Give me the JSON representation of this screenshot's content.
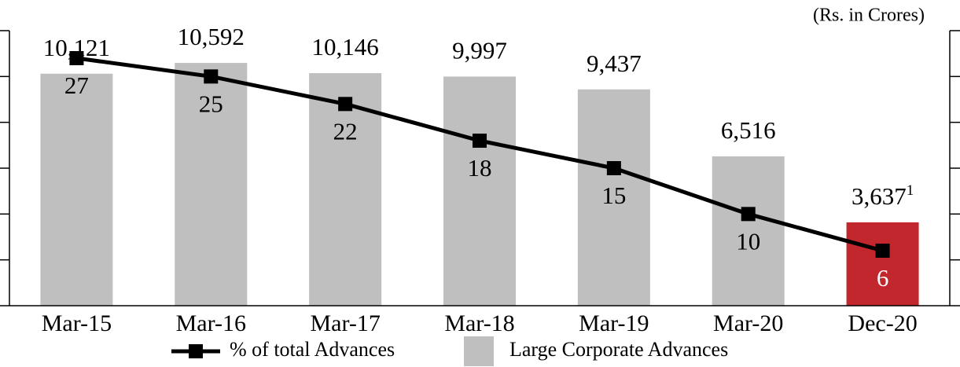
{
  "chart_data": {
    "type": "bar_line",
    "unit_label": "(Rs. in Crores)",
    "categories": [
      "Mar-15",
      "Mar-16",
      "Mar-17",
      "Mar-18",
      "Mar-19",
      "Mar-20",
      "Dec-20"
    ],
    "series": [
      {
        "name": "% of total Advances",
        "type": "line",
        "axis": "y2",
        "color": "#000000",
        "values": [
          27,
          25,
          22,
          18,
          15,
          10,
          6
        ]
      },
      {
        "name": "Large Corporate Advances",
        "type": "bar",
        "color": "#bfbfbf",
        "colors": [
          "#bfbfbf",
          "#bfbfbf",
          "#bfbfbf",
          "#bfbfbf",
          "#bfbfbf",
          "#bfbfbf",
          "#c1272d"
        ],
        "values": [
          10121,
          10592,
          10146,
          9997,
          9437,
          6516,
          3637
        ],
        "value_labels": [
          "10,121",
          "10,592",
          "10,146",
          "9,997",
          "9,437",
          "6,516",
          "3,637"
        ]
      }
    ],
    "footnote_mark": {
      "category": "Dec-20",
      "text": "1"
    },
    "ylim": [
      0,
      12000
    ],
    "yticks": [
      0,
      2000,
      4000,
      6000,
      8000,
      10000,
      12000
    ],
    "y2lim": [
      0,
      30
    ],
    "y2ticks": [
      0,
      5,
      10,
      15,
      20,
      25,
      30
    ]
  }
}
